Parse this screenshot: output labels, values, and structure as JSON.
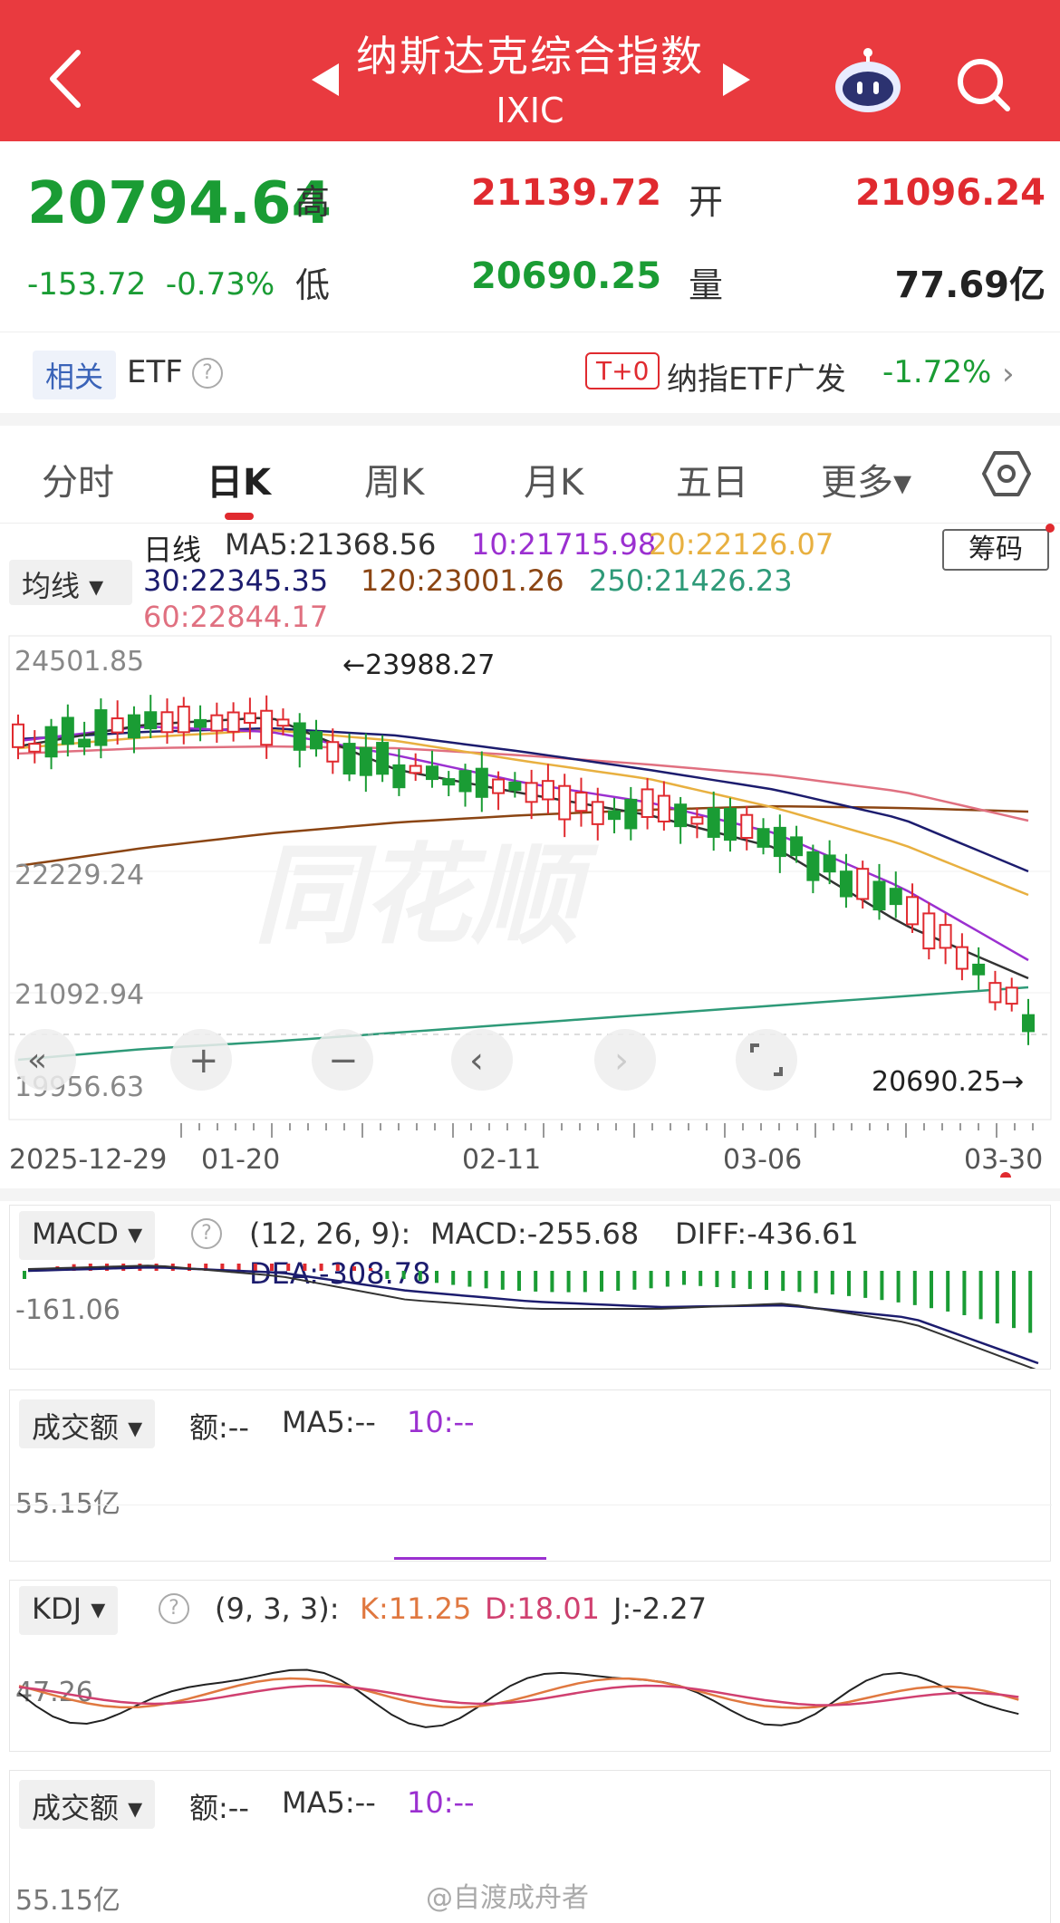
{
  "header": {
    "title": "纳斯达克综合指数",
    "subtitle": "IXIC"
  },
  "quote": {
    "price": "20794.64",
    "change": "-153.72",
    "change_pct": "-0.73%",
    "high_label": "高",
    "high": "21139.72",
    "open_label": "开",
    "open": "21096.24",
    "low_label": "低",
    "low": "20690.25",
    "volume_label": "量",
    "volume": "77.69亿"
  },
  "etf": {
    "tag": "相关",
    "label": "ETF",
    "t0": "T+0",
    "name": "纳指ETF广发",
    "pct": "-1.72%"
  },
  "tabs": [
    "分时",
    "日K",
    "周K",
    "月K",
    "五日",
    "更多▾"
  ],
  "legend": {
    "daily": "日线",
    "ma5": "MA5:21368.56",
    "ma10": "10:21715.98",
    "ma20": "20:22126.07",
    "ma30": "30:22345.35",
    "ma120": "120:23001.26",
    "ma250": "250:21426.23",
    "ma60": "60:22844.17",
    "ma_select": "均线 ▾",
    "chip": "筹码"
  },
  "kline": {
    "y_labels": [
      "24501.85",
      "22229.24",
      "21092.94",
      "19956.63"
    ],
    "high_marker": "←23988.27",
    "low_marker": "20690.25→",
    "x_labels": [
      "2025-12-29",
      "01-20",
      "02-11",
      "03-06",
      "03-30"
    ],
    "watermark": "同花顺"
  },
  "macd": {
    "select": "MACD ▾",
    "params": "(12, 26, 9):",
    "macd": "MACD:-255.68",
    "diff": "DIFF:-436.61",
    "dea": "DEA:-308.78",
    "axis": "-161.06"
  },
  "amount1": {
    "select": "成交额 ▾",
    "amt": "额:--",
    "ma5": "MA5:--",
    "ma10": "10:--",
    "axis": "55.15亿"
  },
  "kdj": {
    "select": "KDJ ▾",
    "params": "(9, 3, 3):",
    "k": "K:11.25",
    "d": "D:18.01",
    "j": "J:-2.27",
    "axis": "47.26"
  },
  "amount2": {
    "select": "成交额 ▾",
    "amt": "额:--",
    "ma5": "MA5:--",
    "ma10": "10:--",
    "axis": "55.15亿"
  },
  "footer": {
    "watermark": "@自渡成舟者"
  },
  "colors": {
    "header_bg": "#e93a3f",
    "up": "#e02a2f",
    "down": "#1a9c34",
    "ma5": "#333333",
    "ma10": "#9b30d0",
    "ma20": "#e8b040",
    "ma30": "#1c1c6e",
    "ma120": "#8b4513",
    "ma250": "#2e9a78",
    "ma60": "#e07080"
  }
}
